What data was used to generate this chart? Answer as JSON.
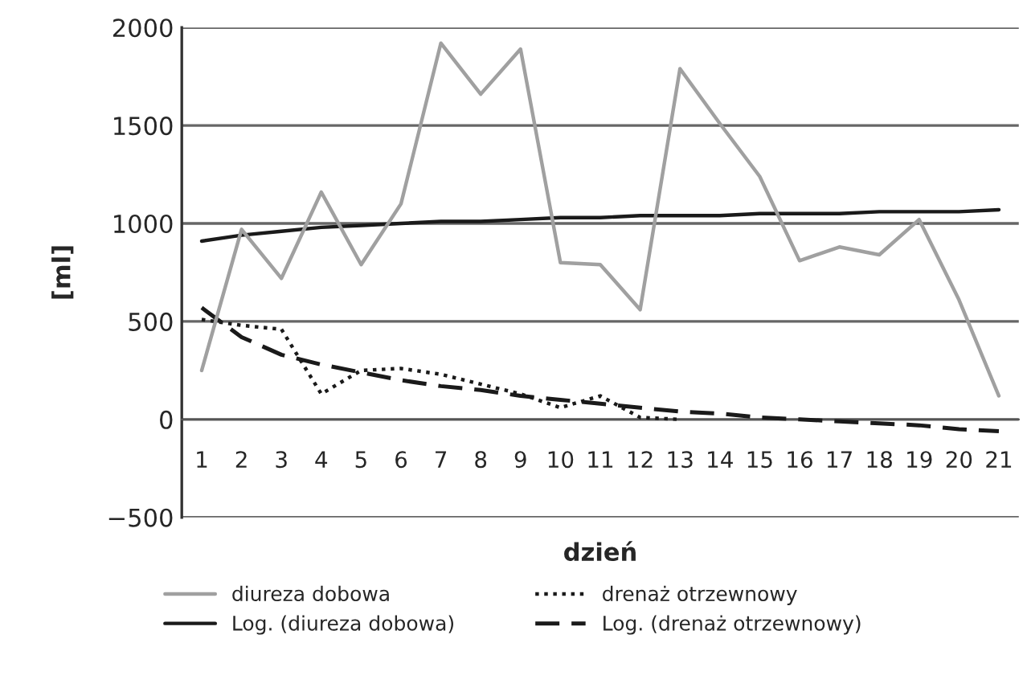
{
  "chart_data": {
    "type": "line",
    "xlabel": "dzień",
    "ylabel": "[ml]",
    "categories": [
      "1",
      "2",
      "3",
      "4",
      "5",
      "6",
      "7",
      "8",
      "9",
      "10",
      "11",
      "12",
      "13",
      "14",
      "15",
      "16",
      "17",
      "18",
      "19",
      "20",
      "21"
    ],
    "series": [
      {
        "name": "diureza dobowa",
        "color": "#a0a0a0",
        "line_style": "solid",
        "values": [
          250,
          970,
          720,
          1160,
          790,
          1100,
          1920,
          1660,
          1890,
          800,
          790,
          560,
          1790,
          1510,
          1240,
          810,
          880,
          840,
          1020,
          610,
          120
        ]
      },
      {
        "name": "Log. (diureza dobowa)",
        "color": "#1a1a1a",
        "line_style": "solid",
        "values": [
          910,
          940,
          960,
          980,
          990,
          1000,
          1010,
          1010,
          1020,
          1030,
          1030,
          1040,
          1040,
          1040,
          1050,
          1050,
          1050,
          1060,
          1060,
          1060,
          1070
        ]
      },
      {
        "name": "drenaż otrzewnowy",
        "color": "#1a1a1a",
        "line_style": "dotted",
        "values": [
          510,
          480,
          460,
          130,
          250,
          260,
          230,
          180,
          130,
          60,
          120,
          10,
          0,
          null,
          null,
          null,
          null,
          null,
          null,
          null,
          null
        ]
      },
      {
        "name": "Log. (drenaż otrzewnowy)",
        "color": "#1a1a1a",
        "line_style": "dashed",
        "values": [
          570,
          420,
          330,
          280,
          240,
          200,
          170,
          150,
          120,
          100,
          80,
          60,
          40,
          30,
          10,
          0,
          -10,
          -20,
          -30,
          -50,
          -60
        ]
      }
    ],
    "ylim": [
      -500,
      2000
    ],
    "yticks": [
      {
        "value": -500,
        "label": "−500"
      },
      0,
      500,
      1000,
      1500,
      2000
    ],
    "grid": "y",
    "legend": "bottom"
  }
}
